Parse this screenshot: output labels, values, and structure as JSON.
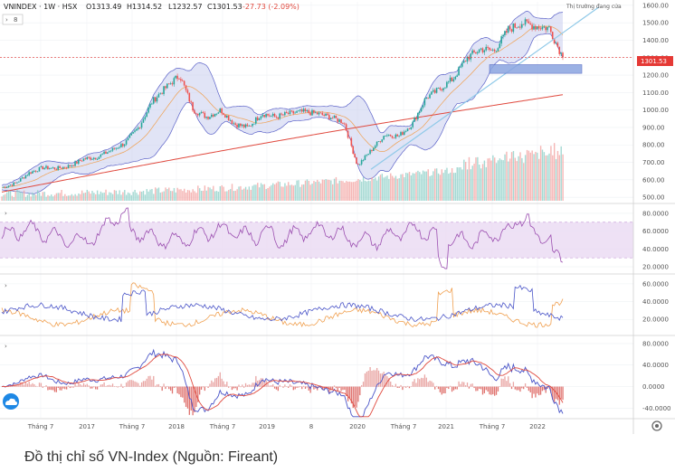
{
  "header": {
    "symbol": "VNINDEX · 1W · HSX",
    "open": "O1313.49",
    "high": "H1314.52",
    "low": "L1232.57",
    "close": "C1301.53",
    "change": "-27.73 (-2.09%)",
    "annotation": "Thị trường đang cửa",
    "price_tag": "1301.53",
    "pane_toggle": "8"
  },
  "caption": "Đồ thị chỉ số VN-Index (Nguồn: Fireant)",
  "colors": {
    "up": "#26a69a",
    "down": "#ef5350",
    "bollinger_fill": "#c9cdee",
    "bollinger_line": "#5b62c8",
    "sma_long": "#e04a3f",
    "mid": "#f0a050",
    "trend": "#8fc9e8",
    "support_box": "#8aa4e0",
    "rsi": "#9b4fb0",
    "rsi_band": "#ead9f2",
    "adx_blue": "#4a55c8",
    "adx_orange": "#f0a050",
    "macd_blue": "#4a55c8",
    "macd_red": "#e04a3f"
  },
  "chart_data": [
    {
      "type": "line",
      "title": "VNINDEX 1W HSX",
      "x": [
        "2016-03",
        "2016-05",
        "2016-07",
        "2016-09",
        "2016-11",
        "2017-01",
        "2017-03",
        "2017-05",
        "2017-07",
        "2017-09",
        "2017-11",
        "2018-01",
        "2018-03",
        "2018-04",
        "2018-05",
        "2018-07",
        "2018-09",
        "2018-11",
        "2019-01",
        "2019-03",
        "2019-05",
        "2019-07",
        "2019-09",
        "2019-11",
        "2020-01",
        "2020-02",
        "2020-03",
        "2020-04",
        "2020-06",
        "2020-08",
        "2020-10",
        "2020-12",
        "2021-01",
        "2021-03",
        "2021-05",
        "2021-07",
        "2021-09",
        "2021-11",
        "2022-01",
        "2022-03",
        "2022-04",
        "2022-05"
      ],
      "series": [
        {
          "name": "VNINDEX",
          "values": [
            555,
            580,
            640,
            670,
            665,
            680,
            720,
            730,
            770,
            810,
            900,
            1050,
            1130,
            1200,
            1000,
            960,
            1000,
            920,
            900,
            980,
            960,
            980,
            990,
            980,
            960,
            930,
            680,
            770,
            860,
            850,
            920,
            1070,
            1120,
            1180,
            1300,
            1350,
            1340,
            1460,
            1500,
            1480,
            1470,
            1301.53
          ]
        }
      ],
      "x_tick_labels": [
        "Tháng 7",
        "2017",
        "Tháng 7",
        "2018",
        "Tháng 7",
        "2019",
        "8",
        "2020",
        "Tháng 7",
        "2021",
        "Tháng 7",
        "2022"
      ],
      "y_tick_labels": [
        "500.00",
        "600.00",
        "700.00",
        "800.00",
        "900.00",
        "1000.00",
        "1100.00",
        "1200.00",
        "1300.00",
        "1400.00",
        "1500.00",
        "1600.00"
      ],
      "ylim": [
        480,
        1620
      ]
    },
    {
      "type": "line",
      "title": "",
      "y_tick_labels": [
        "20.0000",
        "40.0000",
        "60.0000",
        "80.0000"
      ],
      "ylim": [
        15,
        88
      ]
    },
    {
      "type": "line",
      "title": "",
      "y_tick_labels": [
        "20.0000",
        "40.0000",
        "60.0000"
      ],
      "ylim": [
        5,
        68
      ]
    },
    {
      "type": "line",
      "title": "",
      "y_tick_labels": [
        "-40.0000",
        "0.0000",
        "40.0000",
        "80.0000"
      ],
      "ylim": [
        -58,
        90
      ]
    }
  ]
}
